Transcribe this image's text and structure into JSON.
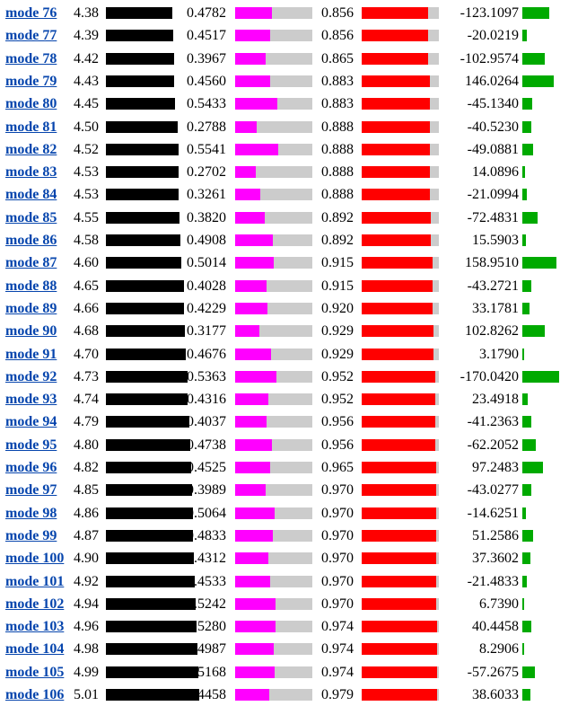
{
  "colors": {
    "link": "#0645ad",
    "bar_a": "#000000",
    "bar_b": "#ff00ff",
    "bar_c": "#ff0000",
    "bar_d": "#00aa00",
    "track": "#cccccc"
  },
  "rows": [
    {
      "mode": "mode 76",
      "a": "4.38",
      "b": "0.4782",
      "c": "0.856",
      "d": "-123.1097"
    },
    {
      "mode": "mode 77",
      "a": "4.39",
      "b": "0.4517",
      "c": "0.856",
      "d": "-20.0219"
    },
    {
      "mode": "mode 78",
      "a": "4.42",
      "b": "0.3967",
      "c": "0.865",
      "d": "-102.9574"
    },
    {
      "mode": "mode 79",
      "a": "4.43",
      "b": "0.4560",
      "c": "0.883",
      "d": "146.0264"
    },
    {
      "mode": "mode 80",
      "a": "4.45",
      "b": "0.5433",
      "c": "0.883",
      "d": "-45.1340"
    },
    {
      "mode": "mode 81",
      "a": "4.50",
      "b": "0.2788",
      "c": "0.888",
      "d": "-40.5230"
    },
    {
      "mode": "mode 82",
      "a": "4.52",
      "b": "0.5541",
      "c": "0.888",
      "d": "-49.0881"
    },
    {
      "mode": "mode 83",
      "a": "4.53",
      "b": "0.2702",
      "c": "0.888",
      "d": "14.0896"
    },
    {
      "mode": "mode 84",
      "a": "4.53",
      "b": "0.3261",
      "c": "0.888",
      "d": "-21.0994"
    },
    {
      "mode": "mode 85",
      "a": "4.55",
      "b": "0.3820",
      "c": "0.892",
      "d": "-72.4831"
    },
    {
      "mode": "mode 86",
      "a": "4.58",
      "b": "0.4908",
      "c": "0.892",
      "d": "15.5903"
    },
    {
      "mode": "mode 87",
      "a": "4.60",
      "b": "0.5014",
      "c": "0.915",
      "d": "158.9510"
    },
    {
      "mode": "mode 88",
      "a": "4.65",
      "b": "0.4028",
      "c": "0.915",
      "d": "-43.2721"
    },
    {
      "mode": "mode 89",
      "a": "4.66",
      "b": "0.4229",
      "c": "0.920",
      "d": "33.1781"
    },
    {
      "mode": "mode 90",
      "a": "4.68",
      "b": "0.3177",
      "c": "0.929",
      "d": "102.8262"
    },
    {
      "mode": "mode 91",
      "a": "4.70",
      "b": "0.4676",
      "c": "0.929",
      "d": "3.1790"
    },
    {
      "mode": "mode 92",
      "a": "4.73",
      "b": "0.5363",
      "c": "0.952",
      "d": "-170.0420"
    },
    {
      "mode": "mode 93",
      "a": "4.74",
      "b": "0.4316",
      "c": "0.952",
      "d": "23.4918"
    },
    {
      "mode": "mode 94",
      "a": "4.79",
      "b": "0.4037",
      "c": "0.956",
      "d": "-41.2363"
    },
    {
      "mode": "mode 95",
      "a": "4.80",
      "b": "0.4738",
      "c": "0.956",
      "d": "-62.2052"
    },
    {
      "mode": "mode 96",
      "a": "4.82",
      "b": "0.4525",
      "c": "0.965",
      "d": "97.2483"
    },
    {
      "mode": "mode 97",
      "a": "4.85",
      "b": "0.3989",
      "c": "0.970",
      "d": "-43.0277"
    },
    {
      "mode": "mode 98",
      "a": "4.86",
      "b": "0.5064",
      "c": "0.970",
      "d": "-14.6251"
    },
    {
      "mode": "mode 99",
      "a": "4.87",
      "b": "0.4833",
      "c": "0.970",
      "d": "51.2586"
    },
    {
      "mode": "mode 100",
      "a": "4.90",
      "b": "0.4312",
      "c": "0.970",
      "d": "37.3602"
    },
    {
      "mode": "mode 101",
      "a": "4.92",
      "b": "0.4533",
      "c": "0.970",
      "d": "-21.4833"
    },
    {
      "mode": "mode 102",
      "a": "4.94",
      "b": "0.5242",
      "c": "0.970",
      "d": "6.7390"
    },
    {
      "mode": "mode 103",
      "a": "4.96",
      "b": "0.5280",
      "c": "0.974",
      "d": "40.4458"
    },
    {
      "mode": "mode 104",
      "a": "4.98",
      "b": "0.4987",
      "c": "0.974",
      "d": "8.2906"
    },
    {
      "mode": "mode 105",
      "a": "4.99",
      "b": "0.5168",
      "c": "0.974",
      "d": "-57.2675"
    },
    {
      "mode": "mode 106",
      "a": "5.01",
      "b": "0.4458",
      "c": "0.979",
      "d": "38.6033"
    }
  ]
}
